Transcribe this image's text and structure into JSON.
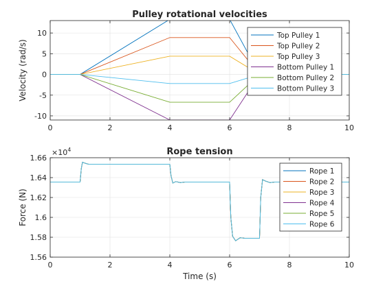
{
  "chart_data": [
    {
      "type": "line",
      "title": "Pulley rotational velocities",
      "xlabel": "",
      "ylabel": "Velocity (rad/s)",
      "xlim": [
        0,
        10
      ],
      "ylim": [
        -11,
        13
      ],
      "xticks": [
        "0",
        "2",
        "4",
        "6",
        "8",
        "10"
      ],
      "yticks": [
        "-10",
        "-5",
        "0",
        "5",
        "10"
      ],
      "grid": true,
      "legend_position": "top-right",
      "series": [
        {
          "name": "Top Pulley 1",
          "color": "#0072BD",
          "x": [
            0,
            1,
            4,
            6,
            7,
            10
          ],
          "y": [
            0,
            0,
            13.3,
            13.3,
            0,
            0
          ]
        },
        {
          "name": "Top Pulley 2",
          "color": "#D95319",
          "x": [
            0,
            1,
            4,
            6,
            7,
            10
          ],
          "y": [
            0,
            0,
            8.9,
            8.9,
            0,
            0
          ]
        },
        {
          "name": "Top Pulley 3",
          "color": "#EDB120",
          "x": [
            0,
            1,
            4,
            6,
            7,
            10
          ],
          "y": [
            0,
            0,
            4.4,
            4.4,
            0,
            0
          ]
        },
        {
          "name": "Bottom Pulley 1",
          "color": "#7E2F8E",
          "x": [
            0,
            1,
            4,
            6,
            7,
            10
          ],
          "y": [
            0,
            0,
            -11,
            -11,
            0,
            0
          ]
        },
        {
          "name": "Bottom Pulley 2",
          "color": "#77AC30",
          "x": [
            0,
            1,
            4,
            6,
            7,
            10
          ],
          "y": [
            0,
            0,
            -6.7,
            -6.7,
            0,
            0
          ]
        },
        {
          "name": "Bottom Pulley 3",
          "color": "#4DBEEE",
          "x": [
            0,
            1,
            4,
            6,
            7,
            10
          ],
          "y": [
            0,
            0,
            -2.2,
            -2.2,
            0,
            0
          ]
        }
      ]
    },
    {
      "type": "line",
      "title": "Rope tension",
      "xlabel": "Time (s)",
      "ylabel": "Force (N)",
      "xlim": [
        0,
        10
      ],
      "ylim": [
        1.56,
        1.66
      ],
      "exponent_label": "×10",
      "exponent_value": "4",
      "xticks": [
        "0",
        "2",
        "4",
        "6",
        "8",
        "10"
      ],
      "yticks": [
        "1.56",
        "1.58",
        "1.6",
        "1.62",
        "1.64",
        "1.66"
      ],
      "grid": true,
      "legend_position": "top-right",
      "series_x": [
        0,
        1,
        1.04,
        1.08,
        1.16,
        1.28,
        1.5,
        4,
        4.04,
        4.1,
        4.2,
        4.35,
        4.5,
        6,
        6.04,
        6.1,
        6.2,
        6.35,
        6.5,
        7,
        7.04,
        7.1,
        7.2,
        7.35,
        7.5,
        10
      ],
      "series_y": [
        1.6355,
        1.6355,
        1.649,
        1.6555,
        1.6545,
        1.6535,
        1.6535,
        1.6535,
        1.642,
        1.6345,
        1.636,
        1.635,
        1.6355,
        1.6355,
        1.6,
        1.581,
        1.5765,
        1.5795,
        1.579,
        1.579,
        1.62,
        1.638,
        1.6365,
        1.635,
        1.6355,
        1.6355
      ],
      "series": [
        {
          "name": "Rope 1",
          "color": "#0072BD"
        },
        {
          "name": "Rope 2",
          "color": "#D95319"
        },
        {
          "name": "Rope 3",
          "color": "#EDB120"
        },
        {
          "name": "Rope 4",
          "color": "#7E2F8E"
        },
        {
          "name": "Rope 5",
          "color": "#77AC30"
        },
        {
          "name": "Rope 6",
          "color": "#4DBEEE"
        }
      ]
    }
  ]
}
